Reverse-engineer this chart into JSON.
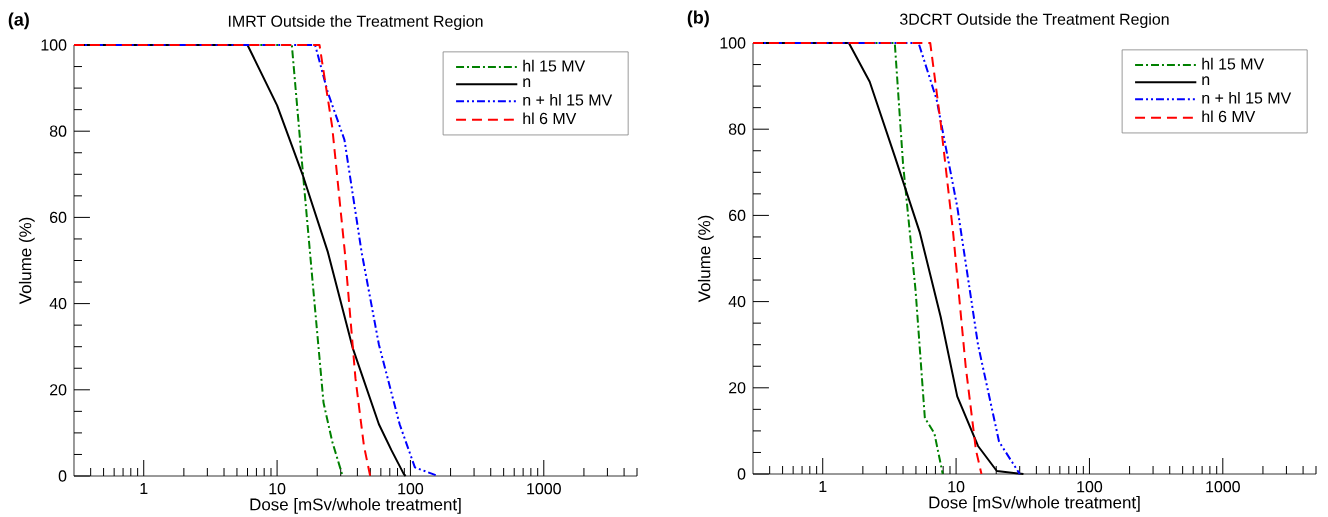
{
  "chart_data": [
    {
      "type": "line",
      "title": "IMRT Outside the Treatment Region",
      "xlabel": "Dose [mSv/whole treatment]",
      "ylabel": "Volume (%)",
      "annotations": [
        "(a)"
      ],
      "log": "x",
      "legend": "top right",
      "xlim": [
        0.3,
        5000
      ],
      "ylim": [
        0,
        100
      ],
      "xticks": [
        {
          "value": 0.4,
          "label": null
        },
        {
          "value": 0.5,
          "label": null
        },
        {
          "value": 0.6,
          "label": null
        },
        {
          "value": 0.7,
          "label": null
        },
        {
          "value": 0.8,
          "label": null
        },
        {
          "value": 0.9,
          "label": null
        },
        1,
        {
          "value": 2,
          "label": null
        },
        {
          "value": 3,
          "label": null
        },
        {
          "value": 4,
          "label": null
        },
        {
          "value": 5,
          "label": null
        },
        {
          "value": 6,
          "label": null
        },
        {
          "value": 7,
          "label": null
        },
        {
          "value": 8,
          "label": null
        },
        {
          "value": 9,
          "label": null
        },
        10,
        {
          "value": 20,
          "label": null
        },
        {
          "value": 30,
          "label": null
        },
        {
          "value": 40,
          "label": null
        },
        {
          "value": 50,
          "label": null
        },
        {
          "value": 60,
          "label": null
        },
        {
          "value": 70,
          "label": null
        },
        {
          "value": 80,
          "label": null
        },
        {
          "value": 90,
          "label": null
        },
        100,
        {
          "value": 200,
          "label": null
        },
        {
          "value": 300,
          "label": null
        },
        {
          "value": 400,
          "label": null
        },
        {
          "value": 500,
          "label": null
        },
        {
          "value": 600,
          "label": null
        },
        {
          "value": 700,
          "label": null
        },
        {
          "value": 800,
          "label": null
        },
        {
          "value": 900,
          "label": null
        },
        1000,
        {
          "value": 2000,
          "label": null
        },
        {
          "value": 3000,
          "label": null
        },
        {
          "value": 4000,
          "label": null
        },
        {
          "value": 5000,
          "label": null
        }
      ],
      "yticks": [
        0,
        {
          "value": 5,
          "label": null
        },
        {
          "value": 10,
          "label": null
        },
        {
          "value": 15,
          "label": null
        },
        20,
        {
          "value": 25,
          "label": null
        },
        {
          "value": 30,
          "label": null
        },
        {
          "value": 35,
          "label": null
        },
        40,
        {
          "value": 45,
          "label": null
        },
        {
          "value": 50,
          "label": null
        },
        {
          "value": 55,
          "label": null
        },
        60,
        {
          "value": 65,
          "label": null
        },
        {
          "value": 70,
          "label": null
        },
        {
          "value": 75,
          "label": null
        },
        80,
        {
          "value": 85,
          "label": null
        },
        {
          "value": 90,
          "label": null
        },
        {
          "value": 95,
          "label": null
        },
        100
      ],
      "series": [
        {
          "name": "hl 15 MV",
          "color": "#008000",
          "line_style": "dashdot",
          "x": [
            0.3,
            12.9,
            15.5,
            18.6,
            22.3,
            25.9,
            31
          ],
          "values": [
            100,
            100,
            71.5,
            44,
            17,
            8,
            0
          ]
        },
        {
          "name": "n",
          "color": "#000000",
          "line_style": "solid",
          "x": [
            0.3,
            6.0,
            10,
            15.5,
            24,
            37,
            58,
            72,
            89,
            92
          ],
          "values": [
            100,
            100,
            86,
            70,
            52,
            29.6,
            12,
            6,
            0.5,
            0
          ]
        },
        {
          "name": "n + hl 15 MV",
          "color": "#0000ff",
          "line_style": "dashdotdot",
          "x": [
            0.3,
            19.3,
            24,
            32,
            43,
            58,
            83,
            108,
            161
          ],
          "values": [
            100,
            100,
            89,
            78,
            52,
            30.5,
            12,
            2,
            0
          ]
        },
        {
          "name": "hl 6 MV",
          "color": "#ff0000",
          "line_style": "dashed",
          "x": [
            0.3,
            20.8,
            25.9,
            32.2,
            38.7,
            44.8,
            49.9
          ],
          "values": [
            100,
            100,
            81,
            52,
            22.7,
            7,
            0
          ]
        }
      ]
    },
    {
      "type": "line",
      "title": "3DCRT Outside the Treatment Region",
      "xlabel": "Dose [mSv/whole treatment]",
      "ylabel": "Volume (%)",
      "annotations": [
        "(b)"
      ],
      "log": "x",
      "legend": "top right",
      "xlim": [
        0.3,
        5000
      ],
      "ylim": [
        0,
        100
      ],
      "xticks": [
        {
          "value": 0.4,
          "label": null
        },
        {
          "value": 0.5,
          "label": null
        },
        {
          "value": 0.6,
          "label": null
        },
        {
          "value": 0.7,
          "label": null
        },
        {
          "value": 0.8,
          "label": null
        },
        {
          "value": 0.9,
          "label": null
        },
        1,
        {
          "value": 2,
          "label": null
        },
        {
          "value": 3,
          "label": null
        },
        {
          "value": 4,
          "label": null
        },
        {
          "value": 5,
          "label": null
        },
        {
          "value": 6,
          "label": null
        },
        {
          "value": 7,
          "label": null
        },
        {
          "value": 8,
          "label": null
        },
        {
          "value": 9,
          "label": null
        },
        10,
        {
          "value": 20,
          "label": null
        },
        {
          "value": 30,
          "label": null
        },
        {
          "value": 40,
          "label": null
        },
        {
          "value": 50,
          "label": null
        },
        {
          "value": 60,
          "label": null
        },
        {
          "value": 70,
          "label": null
        },
        {
          "value": 80,
          "label": null
        },
        {
          "value": 90,
          "label": null
        },
        100,
        {
          "value": 200,
          "label": null
        },
        {
          "value": 300,
          "label": null
        },
        {
          "value": 400,
          "label": null
        },
        {
          "value": 500,
          "label": null
        },
        {
          "value": 600,
          "label": null
        },
        {
          "value": 700,
          "label": null
        },
        {
          "value": 800,
          "label": null
        },
        {
          "value": 900,
          "label": null
        },
        1000,
        {
          "value": 2000,
          "label": null
        },
        {
          "value": 3000,
          "label": null
        },
        {
          "value": 4000,
          "label": null
        },
        {
          "value": 5000,
          "label": null
        }
      ],
      "yticks": [
        0,
        {
          "value": 5,
          "label": null
        },
        {
          "value": 10,
          "label": null
        },
        {
          "value": 15,
          "label": null
        },
        20,
        {
          "value": 25,
          "label": null
        },
        {
          "value": 30,
          "label": null
        },
        {
          "value": 35,
          "label": null
        },
        40,
        {
          "value": 45,
          "label": null
        },
        {
          "value": 50,
          "label": null
        },
        {
          "value": 55,
          "label": null
        },
        60,
        {
          "value": 65,
          "label": null
        },
        {
          "value": 70,
          "label": null
        },
        {
          "value": 75,
          "label": null
        },
        80,
        {
          "value": 85,
          "label": null
        },
        {
          "value": 90,
          "label": null
        },
        {
          "value": 95,
          "label": null
        },
        100
      ],
      "series": [
        {
          "name": "hl 15 MV",
          "color": "#008000",
          "line_style": "dashdot",
          "x": [
            0.3,
            3.47,
            4.0,
            4.97,
            5.83,
            6.88,
            7.94
          ],
          "values": [
            100,
            100,
            72,
            42.5,
            13,
            9.4,
            0
          ]
        },
        {
          "name": "n",
          "color": "#000000",
          "line_style": "solid",
          "x": [
            0.3,
            1.57,
            2.25,
            3.47,
            5.35,
            7.66,
            10.2,
            14.6,
            20.2,
            32
          ],
          "values": [
            100,
            100,
            91,
            73.7,
            56,
            36.5,
            18,
            6.5,
            0.7,
            0
          ]
        },
        {
          "name": "n + hl 15 MV",
          "color": "#0000ff",
          "line_style": "dashdotdot",
          "x": [
            0.3,
            5.23,
            7.13,
            10.2,
            14.6,
            21,
            30
          ],
          "values": [
            100,
            100,
            87,
            62,
            30,
            7.5,
            0
          ]
        },
        {
          "name": "hl 6 MV",
          "color": "#ff0000",
          "line_style": "dashed",
          "x": [
            0.3,
            6.4,
            7.66,
            9.5,
            11.8,
            14.1,
            15.5
          ],
          "values": [
            100,
            100,
            81.5,
            56,
            25,
            5.5,
            0
          ]
        }
      ]
    }
  ]
}
